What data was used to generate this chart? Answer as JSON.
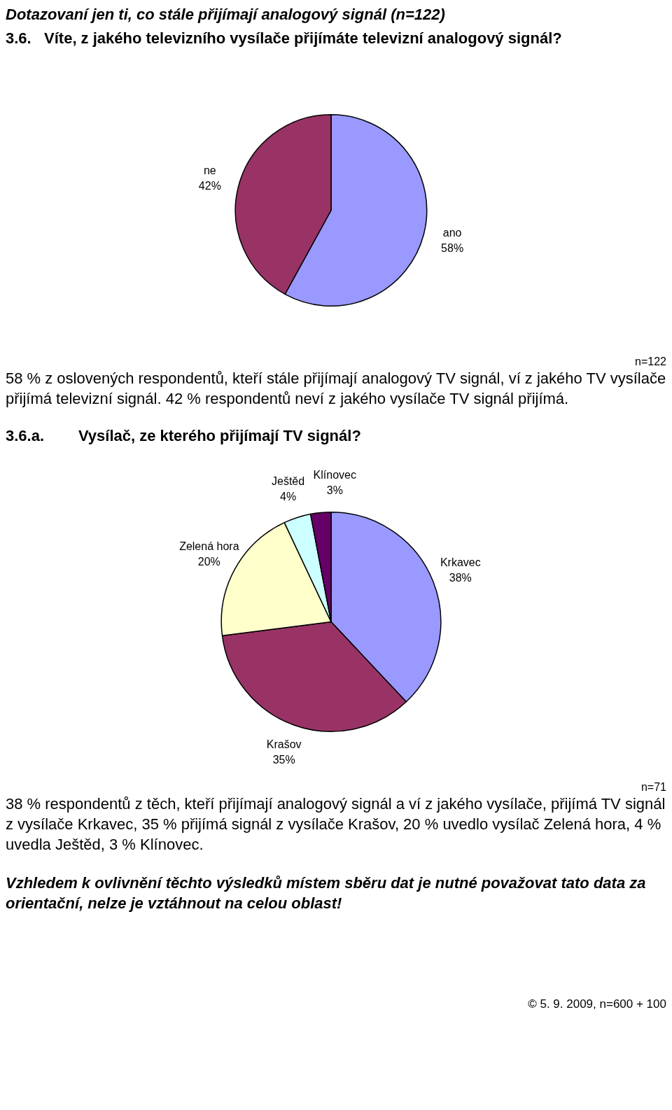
{
  "chart_data": [
    {
      "type": "pie",
      "subtitle": "Dotazovaní jen ti, co stále přijímají analogový signál (n=122)",
      "title": "3.6.   Víte, z jakého televizního vysílače přijímáte televizní analogový signál?",
      "categories": [
        "ano",
        "ne"
      ],
      "values": [
        58,
        42
      ],
      "value_labels": [
        "58%",
        "42%"
      ],
      "colors": [
        "#9999ff",
        "#993366"
      ],
      "data_labels": true,
      "legend": false,
      "annotations": [
        "n=122",
        "58 % z oslovených respondentů, kteří stále přijímají analogový TV signál, ví z jakého TV vysílače přijímá televizní signál. 42 % respondentů neví  z jakého vysílače TV signál přijímá."
      ]
    },
    {
      "type": "pie",
      "title": "3.6.a.        Vysílač, ze kterého přijímají TV signál?",
      "categories": [
        "Krkavec",
        "Krašov",
        "Zelená hora",
        "Ještěd",
        "Klínovec"
      ],
      "values": [
        38,
        35,
        20,
        4,
        3
      ],
      "value_labels": [
        "38%",
        "35%",
        "20%",
        "4%",
        "3%"
      ],
      "colors": [
        "#9999ff",
        "#993366",
        "#ffffcc",
        "#ccffff",
        "#660066"
      ],
      "data_labels": true,
      "legend": false,
      "annotations": [
        "n=71",
        "38 % respondentů z těch, kteří přijímají analogový signál a ví z jakého vysílače, přijímá TV signál z vysílače Krkavec, 35 % přijímá signál z vysílače Krašov, 20 % uvedlo vysílač Zelená hora, 4 % uvedla Ještěd, 3 % Klínovec.",
        "Vzhledem k ovlivnění těchto výsledků místem sběru dat je nutné považovat tato data za orientační, nelze je vztáhnout na celou oblast!",
        "© 5. 9. 2009, n=600 + 100"
      ]
    }
  ]
}
